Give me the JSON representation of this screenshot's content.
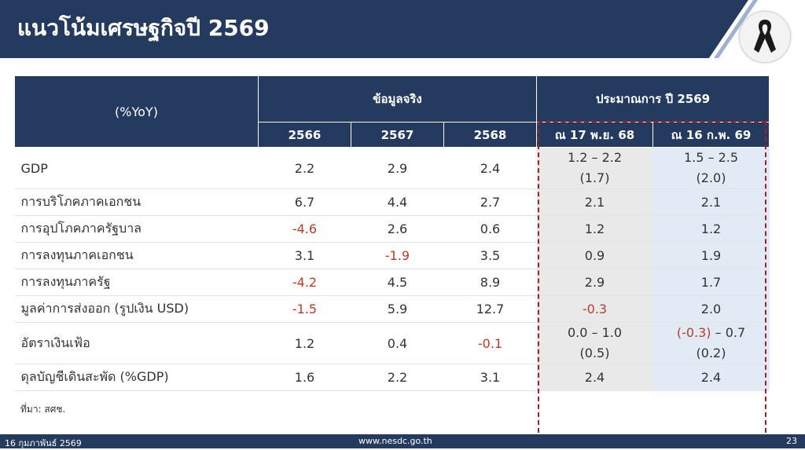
{
  "title": "แนวโน้มเศรษฐกิจปี 2569",
  "ribbon_icon": "black-mourning-ribbon-icon",
  "table": {
    "corner_header": "(%YoY)",
    "actual_header": "ข้อมูลจริง",
    "forecast_header": "ประมาณการ ปี 2569",
    "years": [
      "2566",
      "2567",
      "2568"
    ],
    "forecast_cols": [
      "ณ 17 พ.ย. 68",
      "ณ 16 ก.พ. 69"
    ],
    "rows": [
      {
        "label": "GDP",
        "y2566": "2.2",
        "y2567": "2.9",
        "y2568": "2.4",
        "f1": "1.2 – 2.2",
        "f1_mid": "(1.7)",
        "f2": "1.5 – 2.5",
        "f2_mid": "(2.0)"
      },
      {
        "label": "การบริโภคภาคเอกชน",
        "y2566": "6.7",
        "y2567": "4.4",
        "y2568": "2.7",
        "f1": "2.1",
        "f2": "2.1"
      },
      {
        "label": "การอุปโภคภาครัฐบาล",
        "y2566": "-4.6",
        "y2567": "2.6",
        "y2568": "0.6",
        "f1": "1.2",
        "f2": "1.2"
      },
      {
        "label": "การลงทุนภาคเอกชน",
        "y2566": "3.1",
        "y2567": "-1.9",
        "y2568": "3.5",
        "f1": "0.9",
        "f2": "1.9"
      },
      {
        "label": "การลงทุนภาครัฐ",
        "y2566": "-4.2",
        "y2567": "4.5",
        "y2568": "8.9",
        "f1": "2.9",
        "f2": "1.7"
      },
      {
        "label": "มูลค่าการส่งออก (รูปเงิน USD)",
        "y2566": "-1.5",
        "y2567": "5.9",
        "y2568": "12.7",
        "f1": "-0.3",
        "f2": "2.0"
      },
      {
        "label": "อัตราเงินเฟ้อ",
        "y2566": "1.2",
        "y2567": "0.4",
        "y2568": "-0.1",
        "f1": "0.0 – 1.0",
        "f1_mid": "(0.5)",
        "f2_neg": "(-0.3)",
        "f2_rest": " – 0.7",
        "f2_mid": "(0.2)"
      },
      {
        "label": "ดุลบัญชีเดินสะพัด (%GDP)",
        "y2566": "1.6",
        "y2567": "2.2",
        "y2568": "3.1",
        "f1": "2.4",
        "f2": "2.4"
      }
    ]
  },
  "source": "ที่มา: สศช.",
  "footer": {
    "date": "16 กุมภาพันธ์ 2569",
    "url": "www.nesdc.go.th",
    "page": "23"
  },
  "colors": {
    "navy": "#243a5e",
    "negative": "#c0392b",
    "forecast_1_bg": "#e9e9e9",
    "forecast_2_bg": "#e1eaf5",
    "frame": "#a0202a"
  }
}
